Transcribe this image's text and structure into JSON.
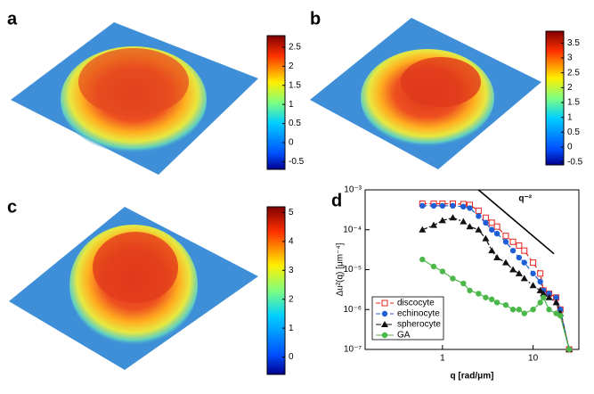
{
  "chart_data": [
    {
      "type": "colorbar",
      "title": "a",
      "ylim": [
        -0.7,
        2.8
      ],
      "yticks": [
        -0.5,
        0,
        0.5,
        1,
        1.5,
        2,
        2.5
      ]
    },
    {
      "type": "colorbar",
      "title": "b",
      "ylim": [
        -0.6,
        3.9
      ],
      "yticks": [
        -0.5,
        0,
        0.5,
        1,
        1.5,
        2,
        2.5,
        3,
        3.5
      ]
    },
    {
      "type": "colorbar",
      "title": "c",
      "ylim": [
        -0.6,
        5.2
      ],
      "yticks": [
        0,
        1,
        2,
        3,
        4,
        5
      ]
    },
    {
      "type": "line",
      "title": "d",
      "xlabel": "q [rad/μm]",
      "ylabel": "Δu²(q) [μm⁻⁴]",
      "log_x": true,
      "log_y": true,
      "legend": "lower-left",
      "xlim": [
        0.14,
        32
      ],
      "ylim": [
        1e-07,
        0.001
      ],
      "xticks": [
        1,
        10
      ],
      "yticks": [
        {
          "value": 1e-07,
          "label": "10⁻⁷"
        },
        {
          "value": 1e-06,
          "label": "10⁻⁶"
        },
        {
          "value": 1e-05,
          "label": "10⁻⁵"
        },
        {
          "value": 0.0001,
          "label": "10⁻⁴"
        },
        {
          "value": 0.001,
          "label": "10⁻³"
        }
      ],
      "annotation": {
        "text": "q⁻²",
        "x": [
          2.5,
          17
        ],
        "values": [
          0.001,
          2.5e-05
        ]
      },
      "x": [
        0.6,
        0.8,
        1,
        1.3,
        1.7,
        2,
        2.5,
        3,
        3.5,
        4,
        5,
        6,
        7,
        8,
        10,
        12,
        13,
        15,
        18,
        20,
        25
      ],
      "series": [
        {
          "name": "discocyte",
          "color": "#e8241c",
          "marker": "square",
          "dash": "5,3",
          "values": [
            0.00045,
            0.00045,
            0.00045,
            0.00045,
            0.00044,
            0.00042,
            0.0003,
            0.0002,
            0.00015,
            0.00012,
            7e-05,
            5e-05,
            4e-05,
            3e-05,
            1.5e-05,
            8e-06,
            3e-06,
            2.5e-06,
            2e-06,
            1e-06,
            1e-07
          ]
        },
        {
          "name": "echinocyte",
          "color": "#1f5fd6",
          "marker": "circle",
          "dash": "5,3",
          "values": [
            0.0004,
            0.0004,
            0.0004,
            0.0004,
            0.00038,
            0.00035,
            0.00022,
            0.00015,
            0.0001,
            8e-05,
            5e-05,
            3e-05,
            2e-05,
            1.5e-05,
            8e-06,
            5e-06,
            3e-06,
            2.5e-06,
            2e-06,
            1e-06,
            1e-07
          ]
        },
        {
          "name": "spherocyte",
          "color": "#111111",
          "marker": "triangle",
          "dash": "6,2,2,2",
          "values": [
            0.0001,
            0.00013,
            0.00017,
            0.0002,
            0.00016,
            0.00012,
            0.0001,
            6e-05,
            3e-05,
            2e-05,
            1.5e-05,
            1e-05,
            8e-06,
            6e-06,
            4e-06,
            3e-06,
            2.5e-06,
            2e-06,
            1.5e-06,
            8e-07,
            1e-07
          ]
        },
        {
          "name": "GA",
          "color": "#4cb84a",
          "marker": "circle",
          "dash": "none",
          "values": [
            1.8e-05,
            1.2e-05,
            9e-06,
            6e-06,
            4.5e-06,
            3e-06,
            2.5e-06,
            2e-06,
            1.8e-06,
            1.5e-06,
            1.3e-06,
            1e-06,
            1e-06,
            8e-07,
            1e-06,
            1.5e-06,
            2e-06,
            1e-06,
            8e-07,
            7e-07,
            1e-07
          ]
        }
      ]
    }
  ]
}
